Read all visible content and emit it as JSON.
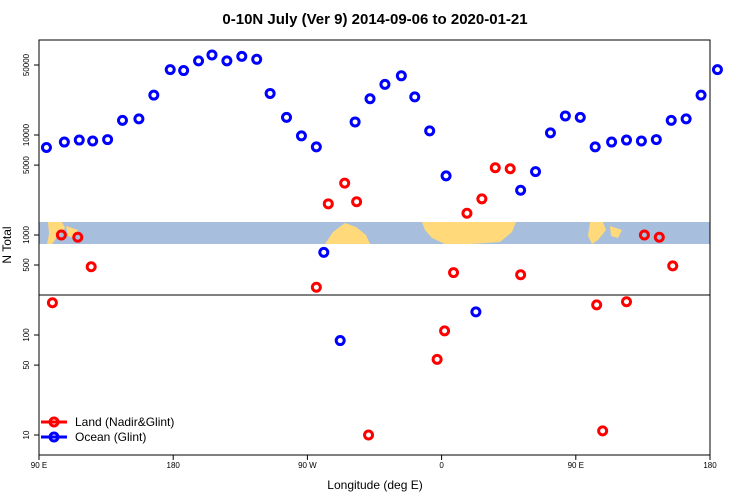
{
  "chart_data": {
    "type": "scatter",
    "title": "0-10N July (Ver 9)   2014-09-06 to 2020-01-21",
    "xlabel": "Longitude (deg E)",
    "ylabel": "N Total",
    "x_ticks": [
      {
        "value": 90,
        "label": "90 E"
      },
      {
        "value": 180,
        "label": "180"
      },
      {
        "value": 270,
        "label": "90 W"
      },
      {
        "value": 360,
        "label": "0"
      },
      {
        "value": 450,
        "label": "90 E"
      },
      {
        "value": 540,
        "label": "180"
      }
    ],
    "xlim": [
      90,
      540
    ],
    "y_scale": "log",
    "ylim": [
      6,
      80000
    ],
    "y_ticks": [
      {
        "value": 10,
        "label": "10"
      },
      {
        "value": 50,
        "label": "50"
      },
      {
        "value": 100,
        "label": "100"
      },
      {
        "value": 500,
        "label": "500"
      },
      {
        "value": 1000,
        "label": "1000"
      },
      {
        "value": 5000,
        "label": "5000"
      },
      {
        "value": 10000,
        "label": "10000"
      },
      {
        "value": 50000,
        "label": "50000"
      }
    ],
    "legend_position": "bottom-left",
    "series": [
      {
        "name": "Land (Nadir&Glint)",
        "color": "#ff0000",
        "points": [
          [
            99,
            210
          ],
          [
            105,
            1000
          ],
          [
            116,
            950
          ],
          [
            125,
            480
          ],
          [
            276,
            300
          ],
          [
            284,
            2050
          ],
          [
            295,
            3300
          ],
          [
            303,
            2150
          ],
          [
            311,
            10
          ],
          [
            357,
            57
          ],
          [
            362,
            110
          ],
          [
            368,
            420
          ],
          [
            377,
            1650
          ],
          [
            387,
            2300
          ],
          [
            396,
            4700
          ],
          [
            406,
            4600
          ],
          [
            413,
            400
          ],
          [
            464,
            200
          ],
          [
            468,
            11
          ],
          [
            484,
            215
          ],
          [
            496,
            1000
          ],
          [
            506,
            950
          ],
          [
            515,
            490
          ]
        ]
      },
      {
        "name": "Ocean (Glint)",
        "color": "#0000ff",
        "points": [
          [
            95,
            7500
          ],
          [
            107,
            8500
          ],
          [
            117,
            8900
          ],
          [
            126,
            8700
          ],
          [
            136,
            9000
          ],
          [
            146,
            14000
          ],
          [
            157,
            14500
          ],
          [
            167,
            25000
          ],
          [
            178,
            45000
          ],
          [
            187,
            44000
          ],
          [
            197,
            55000
          ],
          [
            206,
            63000
          ],
          [
            216,
            55000
          ],
          [
            226,
            61000
          ],
          [
            236,
            57000
          ],
          [
            245,
            26000
          ],
          [
            256,
            15000
          ],
          [
            266,
            9800
          ],
          [
            276,
            7600
          ],
          [
            281,
            670
          ],
          [
            292,
            88
          ],
          [
            302,
            13500
          ],
          [
            312,
            23000
          ],
          [
            322,
            32000
          ],
          [
            333,
            39000
          ],
          [
            342,
            24000
          ],
          [
            352,
            11000
          ],
          [
            363,
            3900
          ],
          [
            383,
            170
          ],
          [
            413,
            2800
          ],
          [
            423,
            4300
          ],
          [
            433,
            10500
          ],
          [
            443,
            15500
          ],
          [
            453,
            15000
          ],
          [
            463,
            7600
          ],
          [
            474,
            8500
          ],
          [
            484,
            8900
          ],
          [
            494,
            8700
          ],
          [
            504,
            9000
          ],
          [
            514,
            14000
          ],
          [
            524,
            14500
          ],
          [
            534,
            25000
          ],
          [
            545,
            45000
          ]
        ]
      }
    ]
  }
}
